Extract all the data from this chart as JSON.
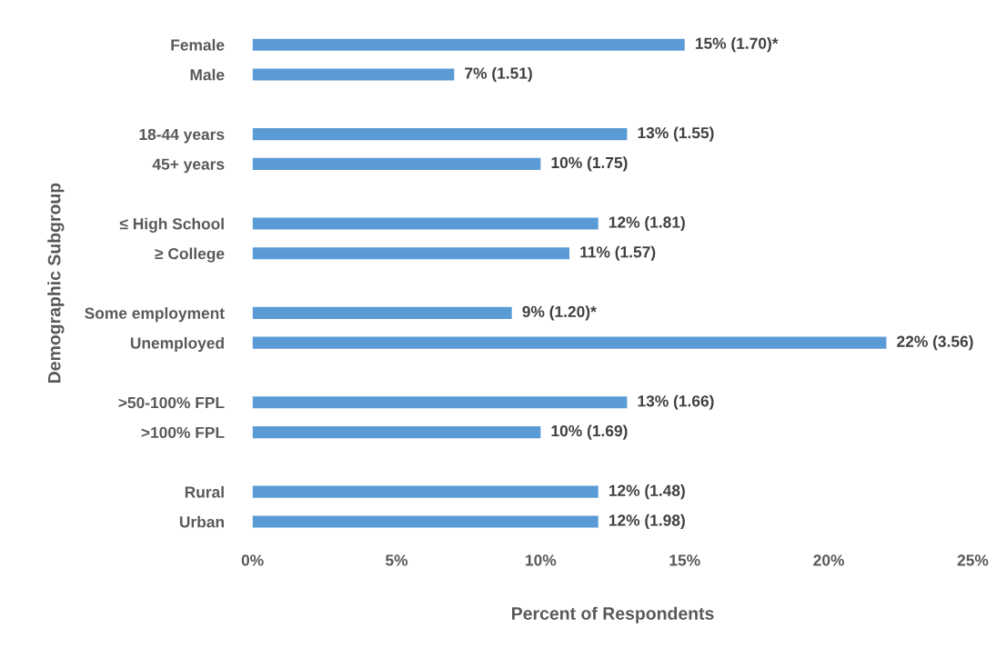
{
  "chart_data": {
    "type": "bar",
    "orientation": "horizontal",
    "xlabel": "Percent of Respondents",
    "ylabel": "Demographic Subgroup",
    "categories": [
      "Female",
      "Male",
      null,
      "18-44 years",
      "45+ years",
      null,
      "≤ High School",
      "≥ College",
      null,
      "Some employment",
      "Unemployed",
      null,
      ">50-100% FPL",
      ">100% FPL",
      null,
      "Rural",
      "Urban"
    ],
    "values": [
      15,
      7,
      null,
      13,
      10,
      null,
      12,
      11,
      null,
      9,
      22,
      null,
      13,
      10,
      null,
      12,
      12
    ],
    "value_labels": [
      "15% (1.70)*",
      "7% (1.51)",
      null,
      "13% (1.55)",
      "10% (1.75)",
      null,
      "12% (1.81)",
      "11% (1.57)",
      null,
      "9% (1.20)*",
      "22% (3.56)",
      null,
      "13% (1.66)",
      "10% (1.69)",
      null,
      "12% (1.48)",
      "12% (1.98)"
    ],
    "color": "#5b9bd5",
    "xlim": [
      0,
      25
    ],
    "xticks": [
      {
        "value": 0,
        "label": "0%"
      },
      {
        "value": 5,
        "label": "5%"
      },
      {
        "value": 10,
        "label": "10%"
      },
      {
        "value": 15,
        "label": "15%"
      },
      {
        "value": 20,
        "label": "20%"
      },
      {
        "value": 25,
        "label": "25%"
      }
    ],
    "grid": false,
    "legend": false
  }
}
